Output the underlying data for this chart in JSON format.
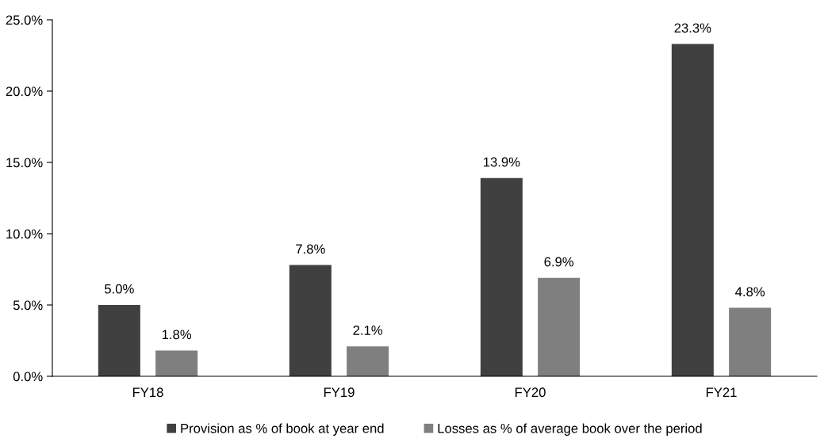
{
  "chart_data": {
    "type": "bar",
    "categories": [
      "FY18",
      "FY19",
      "FY20",
      "FY21"
    ],
    "series": [
      {
        "name": "Provision as % of book at year end",
        "color": "#404040",
        "values": [
          5.0,
          7.8,
          13.9,
          23.3
        ],
        "value_labels": [
          "5.0%",
          "7.8%",
          "13.9%",
          "23.3%"
        ]
      },
      {
        "name": "Losses as % of average book over the period",
        "color": "#7f7f7f",
        "values": [
          1.8,
          2.1,
          6.9,
          4.8
        ],
        "value_labels": [
          "1.8%",
          "2.1%",
          "6.9%",
          "4.8%"
        ]
      }
    ],
    "ylim": [
      0,
      25
    ],
    "yticks": [
      {
        "value": 0,
        "label": "0.0%"
      },
      {
        "value": 5,
        "label": "5.0%"
      },
      {
        "value": 10,
        "label": "10.0%"
      },
      {
        "value": 15,
        "label": "15.0%"
      },
      {
        "value": 20,
        "label": "20.0%"
      },
      {
        "value": 25,
        "label": "25.0%"
      }
    ],
    "grid": false,
    "legend": "bottom"
  }
}
